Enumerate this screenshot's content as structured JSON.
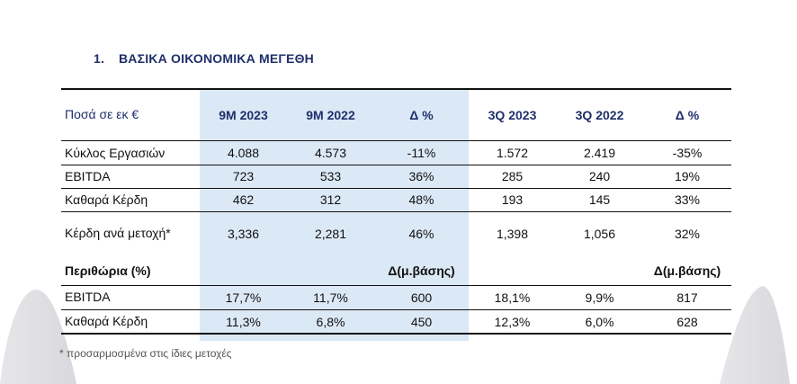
{
  "section": {
    "number": "1.",
    "title": "ΒΑΣΙΚΑ ΟΙΚΟΝΟΜΙΚΑ ΜΕΓΕΘΗ"
  },
  "table": {
    "header": [
      "Ποσά σε εκ €",
      "9M 2023",
      "9M 2022",
      "Δ %",
      "3Q 2023",
      "3Q 2022",
      "Δ %"
    ],
    "rows": [
      [
        "Κύκλος Εργασιών",
        "4.088",
        "4.573",
        "-11%",
        "1.572",
        "2.419",
        "-35%"
      ],
      [
        "EBITDA",
        "723",
        "533",
        "36%",
        "285",
        "240",
        "19%"
      ],
      [
        "Καθαρά Κέρδη",
        "462",
        "312",
        "48%",
        "193",
        "145",
        "33%"
      ],
      [
        "Κέρδη ανά μετοχή*",
        "3,336",
        "2,281",
        "46%",
        "1,398",
        "1,056",
        "32%"
      ]
    ],
    "margins_header": [
      "Περιθώρια (%)",
      "",
      "",
      "Δ(μ.βάσης)",
      "",
      "",
      "Δ(μ.βάσης)"
    ],
    "margin_rows": [
      [
        "EBITDA",
        "17,7%",
        "11,7%",
        "600",
        "18,1%",
        "9,9%",
        "817"
      ],
      [
        "Καθαρά Κέρδη",
        "11,3%",
        "6,8%",
        "450",
        "12,3%",
        "6,0%",
        "628"
      ]
    ]
  },
  "footnote": "* προσαρμοσμένα στις ίδιες μετοχές",
  "colors": {
    "heading": "#1f2f6b",
    "highlight": "#dbe8f6",
    "decor": "#e3e3e6"
  }
}
